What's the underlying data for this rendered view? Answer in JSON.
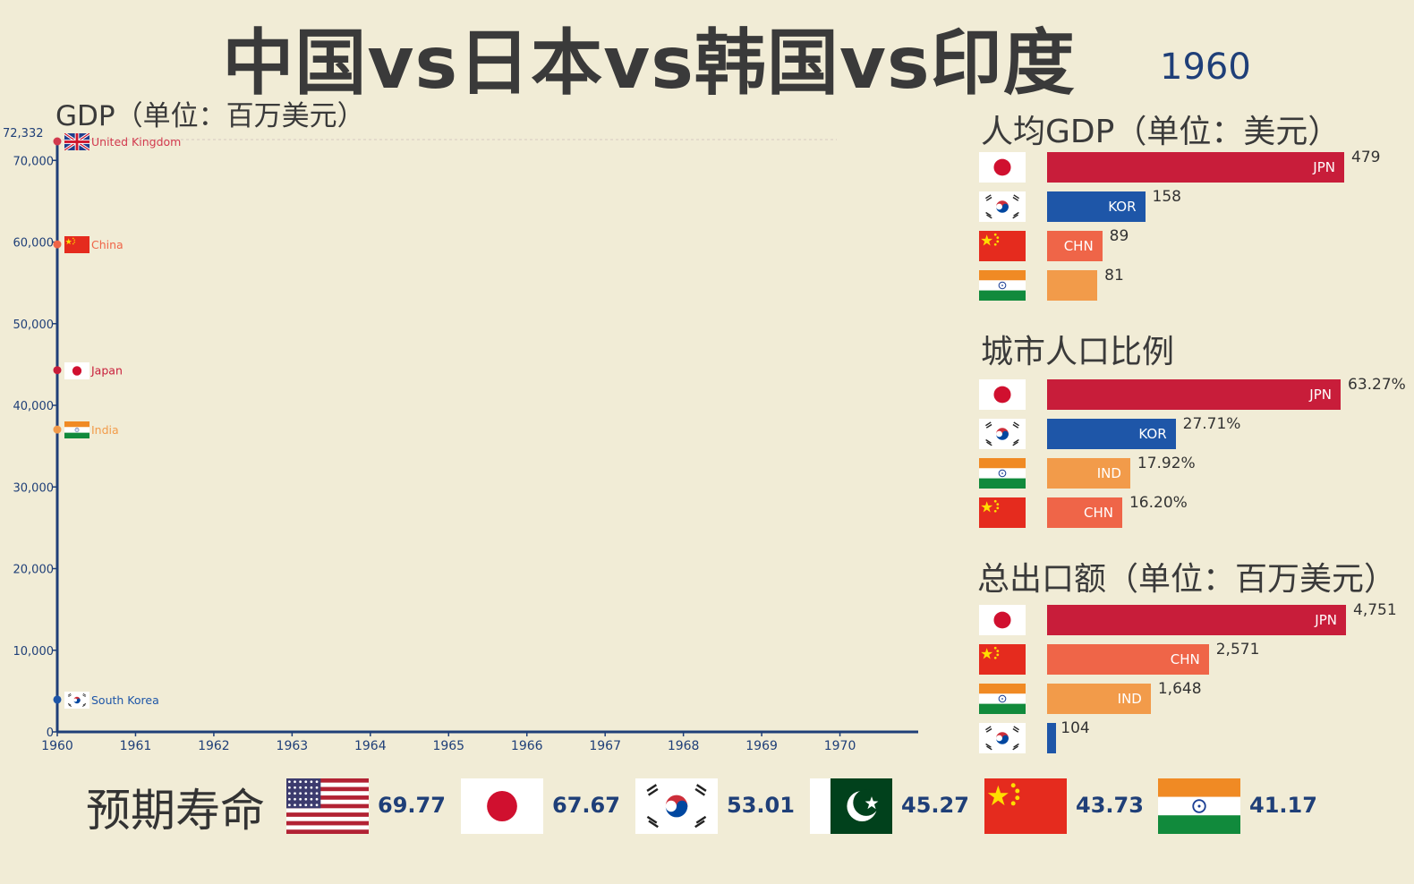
{
  "header": {
    "title": "中国vs日本vs韩国vs印度",
    "year": "1960"
  },
  "gdp_chart": {
    "title": "GDP（单位：百万美元）"
  },
  "per_capita": {
    "title": "人均GDP（单位：美元）",
    "max": 479,
    "rows": [
      {
        "country": "japan",
        "code": "JPN",
        "value": 479,
        "display": "479",
        "color": "#c81d3a"
      },
      {
        "country": "korea",
        "code": "KOR",
        "value": 158,
        "display": "158",
        "color": "#1e56a8"
      },
      {
        "country": "china",
        "code": "CHN",
        "value": 89,
        "display": "89",
        "color": "#ef6548"
      },
      {
        "country": "india",
        "code": "",
        "value": 81,
        "display": "81",
        "color": "#f29b4a"
      }
    ]
  },
  "urban": {
    "title": "城市人口比例",
    "max": 63.27,
    "rows": [
      {
        "country": "japan",
        "code": "JPN",
        "value": 63.27,
        "display": "63.27%",
        "color": "#c81d3a"
      },
      {
        "country": "korea",
        "code": "KOR",
        "value": 27.71,
        "display": "27.71%",
        "color": "#1e56a8"
      },
      {
        "country": "india",
        "code": "IND",
        "value": 17.92,
        "display": "17.92%",
        "color": "#f29b4a"
      },
      {
        "country": "china",
        "code": "CHN",
        "value": 16.2,
        "display": "16.20%",
        "color": "#ef6548"
      }
    ]
  },
  "exports": {
    "title": "总出口额（单位：百万美元）",
    "max": 4751,
    "rows": [
      {
        "country": "japan",
        "code": "JPN",
        "value": 4751,
        "display": "4,751",
        "color": "#c81d3a"
      },
      {
        "country": "china",
        "code": "CHN",
        "value": 2571,
        "display": "2,571",
        "color": "#ef6548"
      },
      {
        "country": "india",
        "code": "IND",
        "value": 1648,
        "display": "1,648",
        "color": "#f29b4a"
      },
      {
        "country": "korea",
        "code": "",
        "value": 104,
        "display": "104",
        "color": "#1e56a8"
      }
    ]
  },
  "life_expectancy": {
    "title": "预期寿命",
    "items": [
      {
        "country": "usa",
        "value": "69.77"
      },
      {
        "country": "japan",
        "value": "67.67"
      },
      {
        "country": "korea",
        "value": "53.01"
      },
      {
        "country": "pakistan",
        "value": "45.27"
      },
      {
        "country": "china",
        "value": "43.73"
      },
      {
        "country": "india",
        "value": "41.17"
      }
    ]
  },
  "chart_data": [
    {
      "type": "line",
      "title": "GDP（单位：百万美元）",
      "x_ticks": [
        "1960",
        "1961",
        "1962",
        "1963",
        "1964",
        "1965",
        "1966",
        "1967",
        "1968",
        "1969",
        "1970"
      ],
      "y_ticks": [
        "0",
        "10,000",
        "20,000",
        "30,000",
        "40,000",
        "50,000",
        "60,000",
        "70,000"
      ],
      "y_max_label": "72,332",
      "ylim": [
        0,
        72332
      ],
      "xlim": [
        1960,
        1971
      ],
      "series": [
        {
          "name": "United Kingdom",
          "flag": "uk",
          "color": "#d23a4e",
          "points": [
            [
              1960,
              72332
            ]
          ]
        },
        {
          "name": "China",
          "flag": "china",
          "color": "#ef6548",
          "points": [
            [
              1960,
              59716
            ]
          ]
        },
        {
          "name": "Japan",
          "flag": "japan",
          "color": "#c81d3a",
          "points": [
            [
              1960,
              44307
            ]
          ]
        },
        {
          "name": "India",
          "flag": "india",
          "color": "#f29b4a",
          "points": [
            [
              1960,
              37030
            ]
          ]
        },
        {
          "name": "South Korea",
          "flag": "korea",
          "color": "#1e56a8",
          "points": [
            [
              1960,
              3958
            ]
          ]
        }
      ]
    },
    {
      "type": "bar",
      "title": "人均GDP（单位：美元）",
      "categories": [
        "JPN",
        "KOR",
        "CHN",
        "IND"
      ],
      "values": [
        479,
        158,
        89,
        81
      ]
    },
    {
      "type": "bar",
      "title": "城市人口比例",
      "categories": [
        "JPN",
        "KOR",
        "IND",
        "CHN"
      ],
      "values": [
        63.27,
        27.71,
        17.92,
        16.2
      ]
    },
    {
      "type": "bar",
      "title": "总出口额（单位：百万美元）",
      "categories": [
        "JPN",
        "CHN",
        "IND",
        "KOR"
      ],
      "values": [
        4751,
        2571,
        1648,
        104
      ]
    }
  ]
}
